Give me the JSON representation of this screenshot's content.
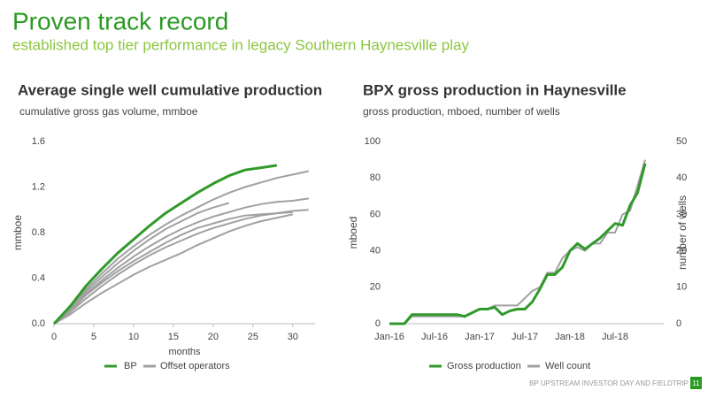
{
  "title": "Proven track record",
  "subtitle": "established top tier performance in legacy Southern Haynesville play",
  "footer": "BP UPSTREAM INVESTOR DAY AND FIELDTRIP",
  "page_number": "11",
  "chart_data": [
    {
      "type": "line",
      "title": "Average single well cumulative production",
      "subtitle": "cumulative gross gas volume, mmboe",
      "xlabel": "months",
      "ylabel": "mmboe",
      "x": [
        0,
        2,
        4,
        6,
        8,
        10,
        12,
        14,
        16,
        18,
        20,
        22,
        24,
        26,
        28,
        30,
        32
      ],
      "xlim": [
        0,
        32.8
      ],
      "xticks": [
        0,
        5,
        10,
        15,
        20,
        25,
        30
      ],
      "ylim": [
        0,
        1.6
      ],
      "yticks": [
        {
          "value": 0,
          "label": "0.0"
        },
        0.4,
        0.8,
        1.2,
        1.6
      ],
      "grid": false,
      "series": [
        {
          "name": "BP",
          "color": "#2f9a2a",
          "values": [
            0,
            0.15,
            0.33,
            0.48,
            0.62,
            0.74,
            0.86,
            0.97,
            1.06,
            1.15,
            1.23,
            1.3,
            1.35,
            1.37,
            1.39,
            null,
            null
          ]
        },
        {
          "name": "Offset operators",
          "color": "#a0a0a0",
          "lines": [
            [
              0,
              0.14,
              0.3,
              0.44,
              0.57,
              0.68,
              0.78,
              0.87,
              0.95,
              1.02,
              1.09,
              1.15,
              1.2,
              1.24,
              1.28,
              1.31,
              1.34
            ],
            [
              0,
              0.12,
              0.26,
              0.38,
              0.49,
              0.59,
              0.68,
              0.76,
              0.83,
              0.89,
              0.94,
              0.98,
              1.02,
              1.05,
              1.07,
              1.08,
              1.1
            ],
            [
              0,
              0.13,
              0.28,
              0.41,
              0.53,
              0.64,
              0.74,
              0.83,
              0.9,
              0.97,
              1.02,
              1.06,
              null,
              null,
              null,
              null,
              null
            ],
            [
              0,
              0.1,
              0.22,
              0.33,
              0.43,
              0.52,
              0.6,
              0.67,
              0.73,
              0.79,
              0.84,
              0.88,
              0.92,
              0.95,
              0.97,
              0.99,
              1.0
            ],
            [
              0,
              0.11,
              0.25,
              0.36,
              0.46,
              0.55,
              0.63,
              0.71,
              0.78,
              0.84,
              0.88,
              0.92,
              0.95,
              0.96,
              0.97,
              0.98,
              null
            ],
            [
              0,
              0.08,
              0.18,
              0.27,
              0.35,
              0.43,
              0.5,
              0.56,
              0.62,
              0.69,
              0.75,
              0.81,
              0.86,
              0.9,
              0.93,
              0.96,
              null
            ]
          ]
        }
      ]
    },
    {
      "type": "line",
      "title": "BPX gross production in Haynesville",
      "subtitle": "gross production, mboed, number of wells",
      "ylabel": "mboed",
      "y2label": "number of wells",
      "categories": [
        "Jan-16",
        null,
        null,
        null,
        null,
        null,
        "Jul-16",
        null,
        null,
        null,
        null,
        null,
        "Jan-17",
        null,
        null,
        null,
        null,
        null,
        "Jul-17",
        null,
        null,
        null,
        null,
        null,
        "Jan-18",
        null,
        null,
        null,
        null,
        null,
        "Jul-18",
        null,
        null,
        null,
        null
      ],
      "ylim": [
        0,
        100
      ],
      "yticks": [
        0,
        20,
        40,
        60,
        80,
        100
      ],
      "y2lim": [
        0,
        50
      ],
      "y2ticks": [
        0,
        10,
        20,
        30,
        40,
        50
      ],
      "grid": false,
      "series": [
        {
          "name": "Gross production",
          "color": "#2f9a2a",
          "values": [
            0,
            0,
            0,
            5,
            5,
            5,
            5,
            5,
            5,
            5,
            4,
            6,
            8,
            8,
            9,
            5,
            7,
            8,
            8,
            12,
            19,
            27,
            27,
            31,
            40,
            44,
            41,
            44,
            47,
            51,
            55,
            54,
            65,
            72,
            88
          ]
        },
        {
          "name": "Well count",
          "color": "#a0a0a0",
          "axis": "y2",
          "values": [
            0,
            0,
            0,
            2,
            2,
            2,
            2,
            2,
            2,
            2,
            2,
            3,
            4,
            4,
            5,
            5,
            5,
            5,
            7,
            9,
            10,
            14,
            14,
            18,
            20,
            21,
            20,
            22,
            22,
            25,
            25,
            30,
            31,
            38,
            45
          ]
        }
      ]
    }
  ]
}
